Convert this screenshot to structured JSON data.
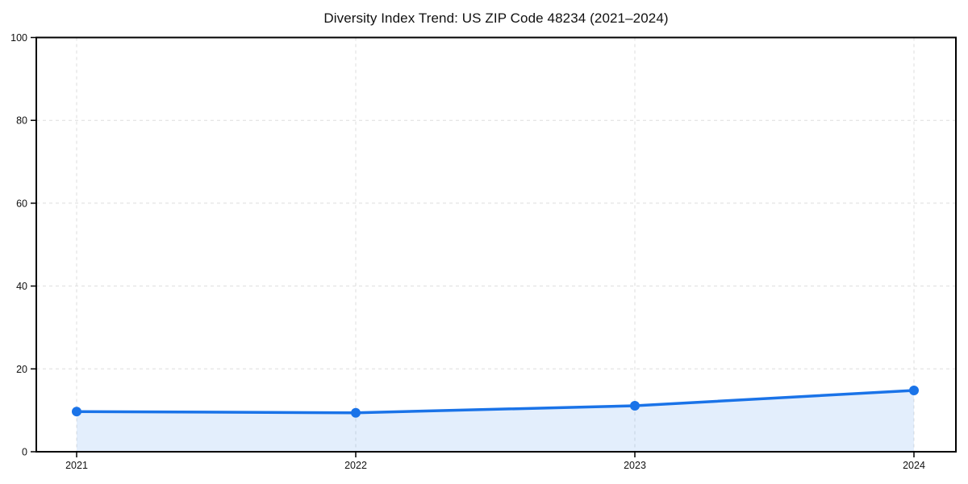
{
  "chart_data": {
    "type": "line",
    "title": "Diversity Index Trend: US ZIP Code 48234 (2021–2024)",
    "categories": [
      "2021",
      "2022",
      "2023",
      "2024"
    ],
    "series": [
      {
        "name": "Diversity Index",
        "values": [
          9.7,
          9.4,
          11.1,
          14.8
        ]
      }
    ],
    "xlabel": "",
    "ylabel": "",
    "ylim": [
      0,
      100
    ],
    "yticks": [
      0,
      20,
      40,
      60,
      80,
      100
    ],
    "grid": true,
    "grid_style": "dashed",
    "legend_position": "none",
    "area_fill": true,
    "markers": true,
    "colors": {
      "line": "#1a73e8",
      "marker": "#1a73e8",
      "fill": "rgba(26,115,232,0.12)",
      "grid": "#dedede",
      "axis": "#000000",
      "text": "#111111",
      "background": "#ffffff"
    }
  }
}
